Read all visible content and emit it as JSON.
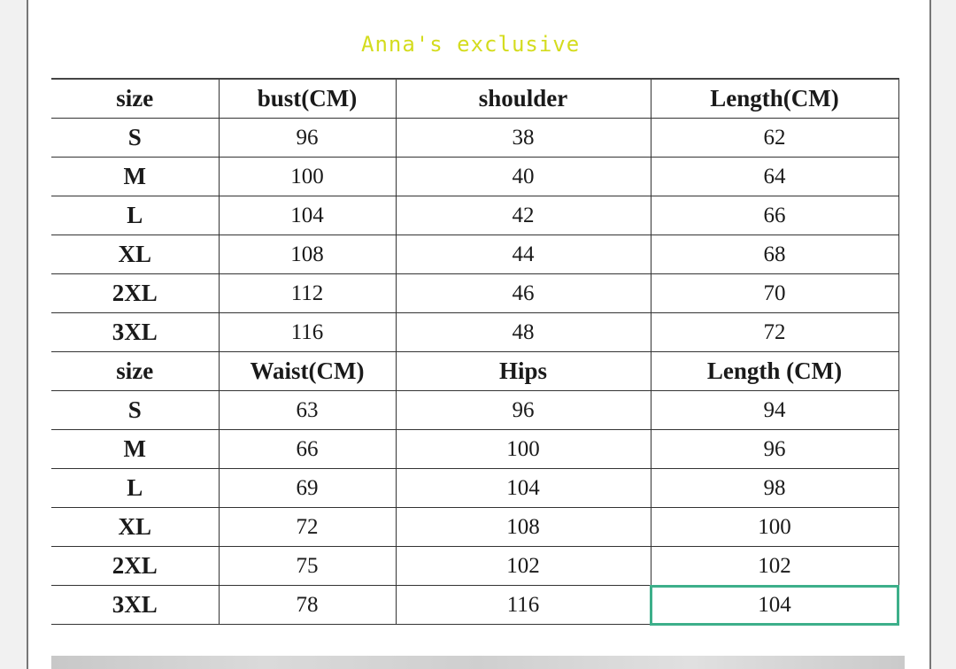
{
  "watermark": "Anna's exclusive",
  "selection_color": "#3daf8a",
  "tables": [
    {
      "headers": [
        "size",
        "bust(CM)",
        "shoulder",
        "Length(CM)"
      ],
      "rows": [
        [
          "S",
          "96",
          "38",
          "62"
        ],
        [
          "M",
          "100",
          "40",
          "64"
        ],
        [
          "L",
          "104",
          "42",
          "66"
        ],
        [
          "XL",
          "108",
          "44",
          "68"
        ],
        [
          "2XL",
          "112",
          "46",
          "70"
        ],
        [
          "3XL",
          "116",
          "48",
          "72"
        ]
      ]
    },
    {
      "headers": [
        "size",
        "Waist(CM)",
        "Hips",
        "Length (CM)"
      ],
      "rows": [
        [
          "S",
          "63",
          "96",
          "94"
        ],
        [
          "M",
          "66",
          "100",
          "96"
        ],
        [
          "L",
          "69",
          "104",
          "98"
        ],
        [
          "XL",
          "72",
          "108",
          "100"
        ],
        [
          "2XL",
          "75",
          "102",
          "102"
        ],
        [
          "3XL",
          "78",
          "116",
          "104"
        ]
      ]
    }
  ]
}
